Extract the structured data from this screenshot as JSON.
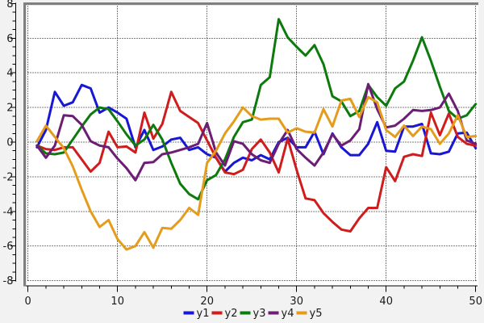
{
  "chart_data": {
    "type": "line",
    "title": "",
    "xlabel": "",
    "ylabel": "",
    "x": [
      1,
      2,
      3,
      4,
      5,
      6,
      7,
      8,
      9,
      10,
      11,
      12,
      13,
      14,
      15,
      16,
      17,
      18,
      19,
      20,
      21,
      22,
      23,
      24,
      25,
      26,
      27,
      28,
      29,
      30,
      31,
      32,
      33,
      34,
      35,
      36,
      37,
      38,
      39,
      40,
      41,
      42,
      43,
      44,
      45,
      46,
      47,
      48,
      49,
      50
    ],
    "series": [
      {
        "name": "y1",
        "color": "#1717d4",
        "values": [
          -0.3,
          0.7,
          2.9,
          2.1,
          2.3,
          3.3,
          3.1,
          1.7,
          2.0,
          1.7,
          1.35,
          -0.3,
          0.7,
          -0.45,
          -0.25,
          0.15,
          0.25,
          -0.45,
          -0.3,
          -0.7,
          -0.9,
          -1.7,
          -1.2,
          -0.9,
          -1.05,
          -0.75,
          -1.0,
          0.0,
          0.25,
          -0.3,
          -0.3,
          0.6,
          -0.7,
          0.5,
          -0.3,
          -0.75,
          -0.75,
          -0.1,
          1.15,
          -0.5,
          -0.55,
          0.9,
          0.9,
          1.05,
          -0.65,
          -0.7,
          -0.55,
          0.5,
          0.55,
          -0.35
        ]
      },
      {
        "name": "y2",
        "color": "#cf1d1d",
        "values": [
          -0.2,
          -0.4,
          -0.45,
          -0.3,
          -0.3,
          -1.0,
          -1.7,
          -1.2,
          0.6,
          -0.3,
          -0.25,
          -0.6,
          1.7,
          0.2,
          1.05,
          2.9,
          1.8,
          1.45,
          1.1,
          0.1,
          -0.9,
          -1.75,
          -1.85,
          -1.6,
          -0.4,
          0.15,
          -0.6,
          -1.75,
          0.2,
          -1.6,
          -3.25,
          -3.35,
          -4.1,
          -4.6,
          -5.05,
          -5.15,
          -4.4,
          -3.8,
          -3.8,
          -1.45,
          -2.25,
          -0.85,
          -0.7,
          -0.8,
          1.7,
          0.4,
          1.65,
          0.3,
          -0.1,
          -0.2
        ]
      },
      {
        "name": "y3",
        "color": "#0d7a0d",
        "values": [
          -0.2,
          -0.65,
          -0.7,
          -0.6,
          0.15,
          0.9,
          1.6,
          2.0,
          1.9,
          1.2,
          0.45,
          -0.2,
          0.15,
          1.0,
          0.15,
          -1.2,
          -2.4,
          -3.0,
          -3.3,
          -2.2,
          -1.9,
          -1.0,
          0.3,
          1.15,
          1.3,
          3.3,
          3.75,
          7.1,
          6.05,
          5.5,
          5.0,
          5.6,
          4.5,
          2.65,
          2.35,
          1.5,
          1.8,
          3.3,
          2.6,
          2.1,
          3.1,
          3.5,
          4.7,
          6.05,
          4.7,
          3.2,
          1.8,
          1.35,
          1.55,
          2.2
        ]
      },
      {
        "name": "y4",
        "color": "#6c1d74",
        "values": [
          -0.2,
          -0.9,
          -0.2,
          1.55,
          1.5,
          1.0,
          0.05,
          -0.2,
          -0.3,
          -0.95,
          -1.5,
          -2.2,
          -1.2,
          -1.15,
          -0.7,
          -0.6,
          -0.45,
          -0.3,
          -0.1,
          1.1,
          -0.6,
          -1.35,
          0.05,
          -0.1,
          -0.7,
          -1.05,
          -1.2,
          -0.1,
          0.7,
          -0.4,
          -0.9,
          -1.35,
          -0.6,
          0.45,
          -0.2,
          0.1,
          0.75,
          3.35,
          1.9,
          0.85,
          0.95,
          1.35,
          1.85,
          1.8,
          1.85,
          2.0,
          2.8,
          1.8,
          0.1,
          -0.1
        ]
      },
      {
        "name": "y5",
        "color": "#e59c1c",
        "values": [
          0.05,
          0.95,
          0.3,
          -0.35,
          -1.4,
          -2.75,
          -4.0,
          -4.9,
          -4.5,
          -5.6,
          -6.2,
          -6.0,
          -5.2,
          -6.1,
          -4.95,
          -5.0,
          -4.5,
          -3.8,
          -4.2,
          -1.2,
          -0.5,
          0.5,
          1.2,
          2.0,
          1.5,
          1.3,
          1.35,
          1.35,
          0.55,
          0.8,
          0.6,
          0.55,
          1.9,
          0.9,
          2.4,
          2.5,
          1.45,
          2.6,
          2.3,
          0.7,
          0.3,
          0.95,
          0.35,
          0.9,
          0.75,
          -0.1,
          0.5,
          1.55,
          0.3,
          0.35
        ]
      }
    ],
    "x_axis": {
      "tick_labels": [
        "0",
        "10",
        "20",
        "30",
        "40",
        "50"
      ],
      "ticks": [
        0,
        10,
        20,
        30,
        40,
        50
      ],
      "minor_step": 2,
      "range": [
        0,
        50.5
      ]
    },
    "y_axis": {
      "tick_labels": [
        "8",
        "6",
        "4",
        "2",
        "0",
        "-2",
        "-4",
        "-6",
        "-8"
      ],
      "ticks": [
        8,
        6,
        4,
        2,
        0,
        -2,
        -4,
        -6,
        -8
      ],
      "minor_step": 0.5,
      "range": [
        -8.4,
        8.4
      ]
    },
    "grid": "dotted",
    "legend_position": "bottom-center",
    "legend_labels": [
      "y1",
      "y2",
      "y3",
      "y4",
      "y5"
    ]
  },
  "colors": {
    "background": "#f2f2f2",
    "plot_background": "#ffffff",
    "frame": "#7f7f7f",
    "axis": "#000000",
    "grid_dots": "#000000",
    "text": "#1a1a1a"
  }
}
